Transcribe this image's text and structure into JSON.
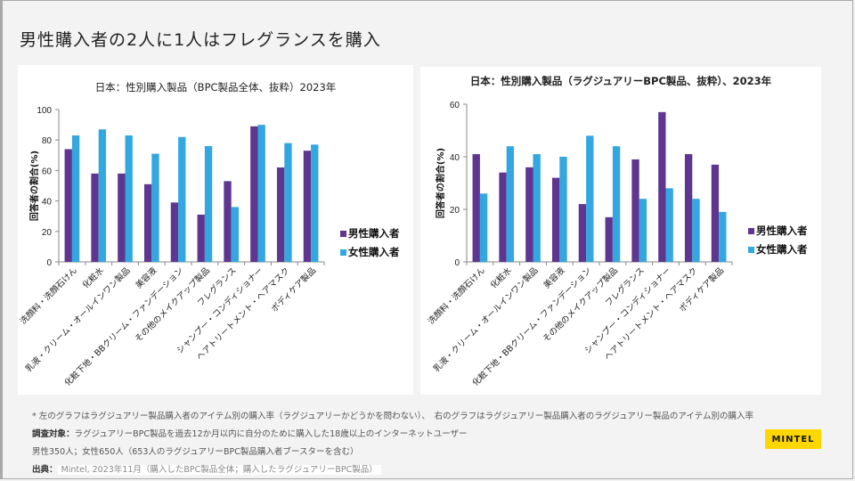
{
  "slide": {
    "title": "男性購入者の2人に1人はフレグランスを購入"
  },
  "colors": {
    "male": "#5e3690",
    "female": "#33a7df",
    "logo_bg": "#ffd700"
  },
  "chart_data": [
    {
      "type": "bar",
      "title": "日本：性別購入製品（BPC製品全体、抜粋）2023年",
      "xlabel": "",
      "ylabel": "回答者の割合(%)",
      "ylim": [
        0,
        100
      ],
      "yticks": [
        0,
        20,
        40,
        60,
        80,
        100
      ],
      "legend_position": "right",
      "categories": [
        "洗顔料・洗顔石けん",
        "化粧水",
        "乳液・クリーム・オールインワン製品",
        "美容液",
        "化粧下地・BBクリーム・ファンデーション",
        "その他のメイクアップ製品",
        "フレグランス",
        "シャンプー・コンディショナー",
        "ヘアトリートメント・ヘアマスク",
        "ボディケア製品"
      ],
      "series": [
        {
          "name": "男性購入者",
          "values": [
            74,
            58,
            58,
            51,
            39,
            31,
            53,
            89,
            62,
            73
          ]
        },
        {
          "name": "女性購入者",
          "values": [
            83,
            87,
            83,
            71,
            82,
            76,
            36,
            90,
            78,
            77
          ]
        }
      ]
    },
    {
      "type": "bar",
      "title": "日本：性別購入製品（ラグジュアリーBPC製品、抜粋）、2023年",
      "xlabel": "",
      "ylabel": "回答者の割合(%)",
      "ylim": [
        0,
        60
      ],
      "yticks": [
        0,
        20,
        40,
        60
      ],
      "legend_position": "right",
      "categories": [
        "洗顔料・洗顔石けん",
        "化粧水",
        "乳液・クリーム・オールインワン製品",
        "美容液",
        "化粧下地・BBクリーム・ファンデーション",
        "その他のメイクアップ製品",
        "フレグランス",
        "シャンプー・コンディショナー",
        "ヘアトリートメント・ヘアマスク",
        "ボディケア製品"
      ],
      "series": [
        {
          "name": "男性購入者",
          "values": [
            41,
            34,
            36,
            32,
            22,
            17,
            39,
            57,
            41,
            37
          ]
        },
        {
          "name": "女性購入者",
          "values": [
            26,
            44,
            41,
            40,
            48,
            44,
            24,
            28,
            24,
            19
          ]
        }
      ]
    }
  ],
  "notes": {
    "line1": "* 左のグラフはラグジュアリー製品購入者のアイテム別の購入率（ラグジュアリーかどうかを問わない）、　右のグラフはラグジュアリー製品購入者のラグジュアリー製品のアイテム別の購入率",
    "line2_label": "調査対象：",
    "line2_text": "ラグジュアリーBPC製品を過去12か月以内に自分のために購入した18歳以上のインターネットユーザー",
    "line3": "男性350人；女性650人（653人のラグジュアリーBPC製品購入者ブースターを含む）",
    "line4_label": "出典：",
    "line4_text": "Mintel, 2023年11月（購入したBPC製品全体；購入したラグジュアリーBPC製品）"
  },
  "logo": {
    "text": "MINTEL"
  }
}
